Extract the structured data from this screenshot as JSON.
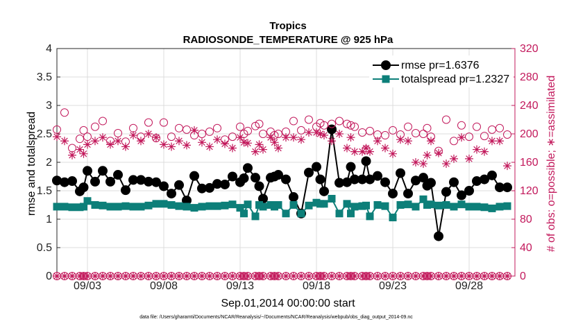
{
  "chart_data": {
    "type": "line",
    "title": "Tropics",
    "subtitle": "RADIOSONDE_TEMPERATURE @ 925 hPa",
    "xlabel": "Sep.01,2014 00:00:00 start",
    "ylabel": "rmse and totalspread",
    "ylabel_right": "# of obs: o=possible; ∗=assimilated",
    "footer": "data file: /Users/gharamti/Documents/NCAR/Reanalysis/~/Documents/NCAR/Reanalysis/webpub/obs_diag_output_2014-09.nc",
    "xlim": [
      1.0,
      31.0
    ],
    "ylim": [
      0,
      4
    ],
    "ylim_right": [
      0,
      320
    ],
    "yticks": [
      "0",
      "0.5",
      "1",
      "1.5",
      "2",
      "2.5",
      "3",
      "3.5",
      "4"
    ],
    "yticks_right": [
      "0",
      "40",
      "80",
      "120",
      "160",
      "200",
      "240",
      "280",
      "320"
    ],
    "xticks": [
      {
        "day": 3,
        "label": "09/03"
      },
      {
        "day": 8,
        "label": "09/08"
      },
      {
        "day": 13,
        "label": "09/13"
      },
      {
        "day": 18,
        "label": "09/18"
      },
      {
        "day": 23,
        "label": "09/23"
      },
      {
        "day": 28,
        "label": "09/28"
      }
    ],
    "x": [
      1.0,
      1.5,
      2.0,
      2.5,
      2.75,
      3.0,
      3.5,
      4.0,
      4.5,
      5.0,
      5.5,
      6.0,
      6.5,
      7.0,
      7.5,
      8.0,
      8.5,
      9.0,
      9.5,
      10.0,
      10.5,
      11.0,
      11.5,
      12.0,
      12.5,
      13.0,
      13.25,
      13.5,
      14.0,
      14.25,
      14.5,
      15.0,
      15.25,
      15.5,
      16.0,
      16.5,
      17.0,
      17.5,
      18.0,
      18.25,
      18.5,
      19.0,
      19.5,
      20.0,
      20.25,
      20.5,
      21.0,
      21.25,
      21.5,
      22.0,
      22.5,
      23.0,
      23.5,
      24.0,
      24.5,
      25.0,
      25.25,
      25.5,
      26.0,
      26.5,
      27.0,
      27.5,
      28.0,
      28.5,
      29.0,
      29.5,
      30.0,
      30.5
    ],
    "series": [
      {
        "name": "rmse",
        "legend": "rmse pr=1.6376",
        "color": "#000000",
        "marker": "circle",
        "values": [
          1.68,
          1.65,
          1.67,
          1.49,
          1.56,
          1.85,
          1.66,
          1.85,
          1.66,
          1.78,
          1.51,
          1.69,
          1.69,
          1.66,
          1.65,
          1.58,
          1.45,
          1.6,
          1.33,
          1.76,
          1.54,
          1.55,
          1.62,
          1.61,
          1.75,
          1.65,
          1.72,
          1.9,
          1.73,
          1.58,
          1.36,
          1.73,
          1.75,
          1.78,
          1.7,
          1.39,
          1.1,
          1.82,
          1.92,
          1.7,
          1.49,
          2.58,
          1.64,
          1.65,
          1.92,
          1.7,
          1.7,
          2.02,
          1.7,
          1.76,
          1.65,
          1.45,
          1.81,
          1.45,
          1.68,
          1.73,
          1.59,
          1.64,
          0.7,
          1.48,
          1.65,
          1.42,
          1.5,
          1.67,
          1.7,
          1.77,
          1.56,
          1.56
        ]
      },
      {
        "name": "totalspread",
        "legend": "totalspread pr=1.2327",
        "color": "#0d7f79",
        "marker": "square",
        "values": [
          1.22,
          1.22,
          1.21,
          1.21,
          1.22,
          1.32,
          1.25,
          1.24,
          1.22,
          1.22,
          1.23,
          1.22,
          1.22,
          1.24,
          1.27,
          1.27,
          1.25,
          1.23,
          1.22,
          1.2,
          1.22,
          1.23,
          1.23,
          1.24,
          1.26,
          1.2,
          1.1,
          1.26,
          1.05,
          1.25,
          1.22,
          1.25,
          1.22,
          1.25,
          1.1,
          1.25,
          1.1,
          1.24,
          1.29,
          1.27,
          1.27,
          1.36,
          1.1,
          1.27,
          1.1,
          1.22,
          1.23,
          1.24,
          1.05,
          1.25,
          1.23,
          1.03,
          1.25,
          1.26,
          1.22,
          1.35,
          1.25,
          1.26,
          1.24,
          1.25,
          1.22,
          1.26,
          1.22,
          1.22,
          1.21,
          1.19,
          1.22,
          1.23
        ]
      },
      {
        "name": "possible",
        "color": "#c2185b",
        "marker": "open-circle",
        "axis": "right",
        "values": [
          206,
          230,
          180,
          193,
          205,
          196,
          210,
          218,
          190,
          201,
          189,
          208,
          196,
          216,
          194,
          216,
          196,
          208,
          206,
          198,
          200,
          203,
          208,
          192,
          196,
          210,
          200,
          204,
          211,
          214,
          200,
          203,
          198,
          200,
          203,
          218,
          205,
          220,
          210,
          215,
          212,
          214,
          218,
          214,
          212,
          210,
          202,
          178,
          204,
          199,
          198,
          205,
          199,
          210,
          201,
          200,
          208,
          196,
          176,
          220,
          190,
          212,
          196,
          210,
          197,
          206,
          208,
          199
        ]
      },
      {
        "name": "assimilated",
        "color": "#c2185b",
        "marker": "asterisk",
        "axis": "right",
        "values": [
          196,
          190,
          170,
          178,
          172,
          185,
          190,
          195,
          185,
          190,
          182,
          198,
          190,
          200,
          195,
          185,
          182,
          190,
          184,
          205,
          188,
          182,
          192,
          186,
          180,
          195,
          188,
          187,
          175,
          185,
          178,
          195,
          188,
          180,
          195,
          195,
          192,
          202,
          202,
          200,
          198,
          190,
          200,
          180,
          195,
          175,
          175,
          180,
          175,
          190,
          180,
          172,
          192,
          190,
          160,
          158,
          170,
          190,
          173,
          158,
          165,
          195,
          165,
          178,
          175,
          190,
          190,
          155
        ]
      },
      {
        "name": "possible_zero",
        "color": "#c2185b",
        "marker": "open-circle",
        "axis": "right",
        "values": [
          0,
          0,
          0,
          0,
          0,
          0,
          0,
          0,
          0,
          0,
          0,
          0,
          0,
          0,
          0,
          0,
          0,
          0,
          0,
          0,
          0,
          0,
          0,
          0,
          0,
          0,
          0,
          0,
          0,
          0,
          0,
          0,
          0,
          0,
          0,
          0,
          0,
          0,
          0,
          0,
          0,
          0,
          0,
          0,
          0,
          0,
          0,
          0,
          0,
          0,
          0,
          0,
          0,
          0,
          0,
          0,
          0,
          0,
          0,
          0,
          0,
          0,
          0,
          0,
          0,
          0,
          0,
          0
        ]
      },
      {
        "name": "assimilated_zero",
        "color": "#c2185b",
        "marker": "asterisk",
        "axis": "right",
        "values": [
          0,
          0,
          0,
          0,
          0,
          0,
          0,
          0,
          0,
          0,
          0,
          0,
          0,
          0,
          0,
          0,
          0,
          0,
          0,
          0,
          0,
          0,
          0,
          0,
          0,
          0,
          0,
          0,
          0,
          0,
          0,
          0,
          0,
          0,
          0,
          0,
          0,
          0,
          0,
          0,
          0,
          0,
          0,
          0,
          0,
          0,
          0,
          0,
          0,
          0,
          0,
          0,
          0,
          0,
          0,
          0,
          0,
          0,
          0,
          0,
          0,
          0,
          0,
          0,
          0,
          0,
          0,
          0
        ]
      }
    ]
  }
}
